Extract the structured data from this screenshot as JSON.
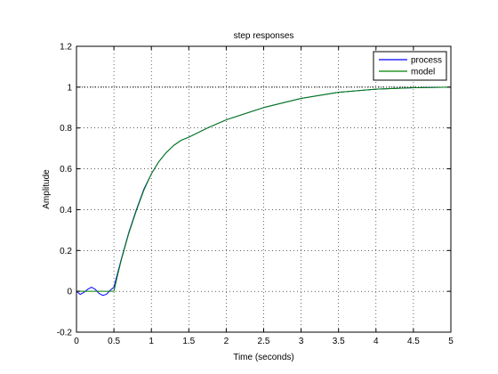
{
  "chart_data": {
    "type": "line",
    "title": "step responses",
    "xlabel": "Time (seconds)",
    "ylabel": "Amplitude",
    "xlim": [
      0,
      5
    ],
    "ylim": [
      -0.2,
      1.2
    ],
    "xticks": [
      0,
      0.5,
      1,
      1.5,
      2,
      2.5,
      3,
      3.5,
      4,
      4.5,
      5
    ],
    "xtick_labels": [
      "0",
      "0.5",
      "1",
      "1.5",
      "2",
      "2.5",
      "3",
      "3.5",
      "4",
      "4.5",
      "5"
    ],
    "yticks": [
      -0.2,
      0,
      0.2,
      0.4,
      0.6,
      0.8,
      1,
      1.2
    ],
    "ytick_labels": [
      "-0.2",
      "0",
      "0.2",
      "0.4",
      "0.6",
      "0.8",
      "1",
      "1.2"
    ],
    "grid": true,
    "legend_position": "top-right",
    "reference_line": {
      "y": 1,
      "style": "dotted",
      "color": "#000000"
    },
    "series": [
      {
        "name": "process",
        "color": "#0000ff",
        "x": [
          0,
          0.05,
          0.1,
          0.15,
          0.2,
          0.25,
          0.3,
          0.35,
          0.4,
          0.45,
          0.5,
          0.55,
          0.6,
          0.7,
          0.8,
          0.9,
          1.0,
          1.1,
          1.2,
          1.3,
          1.4,
          1.5,
          1.75,
          2.0,
          2.5,
          3.0,
          3.5,
          4.0,
          4.5,
          5.0
        ],
        "y": [
          0,
          -0.015,
          -0.005,
          0.01,
          0.02,
          0.01,
          -0.01,
          -0.02,
          -0.015,
          0.005,
          0.02,
          0.09,
          0.16,
          0.29,
          0.4,
          0.5,
          0.575,
          0.635,
          0.68,
          0.715,
          0.74,
          0.755,
          0.8,
          0.84,
          0.9,
          0.945,
          0.975,
          0.99,
          0.997,
          1.0
        ]
      },
      {
        "name": "model",
        "color": "#008000",
        "x": [
          0,
          0.5,
          0.55,
          0.6,
          0.7,
          0.8,
          0.9,
          1.0,
          1.1,
          1.2,
          1.3,
          1.4,
          1.5,
          1.75,
          2.0,
          2.5,
          3.0,
          3.5,
          4.0,
          4.5,
          5.0
        ],
        "y": [
          0,
          0,
          0.08,
          0.155,
          0.285,
          0.395,
          0.495,
          0.575,
          0.635,
          0.68,
          0.715,
          0.74,
          0.755,
          0.8,
          0.84,
          0.9,
          0.945,
          0.975,
          0.99,
          0.997,
          1.0
        ]
      }
    ]
  }
}
